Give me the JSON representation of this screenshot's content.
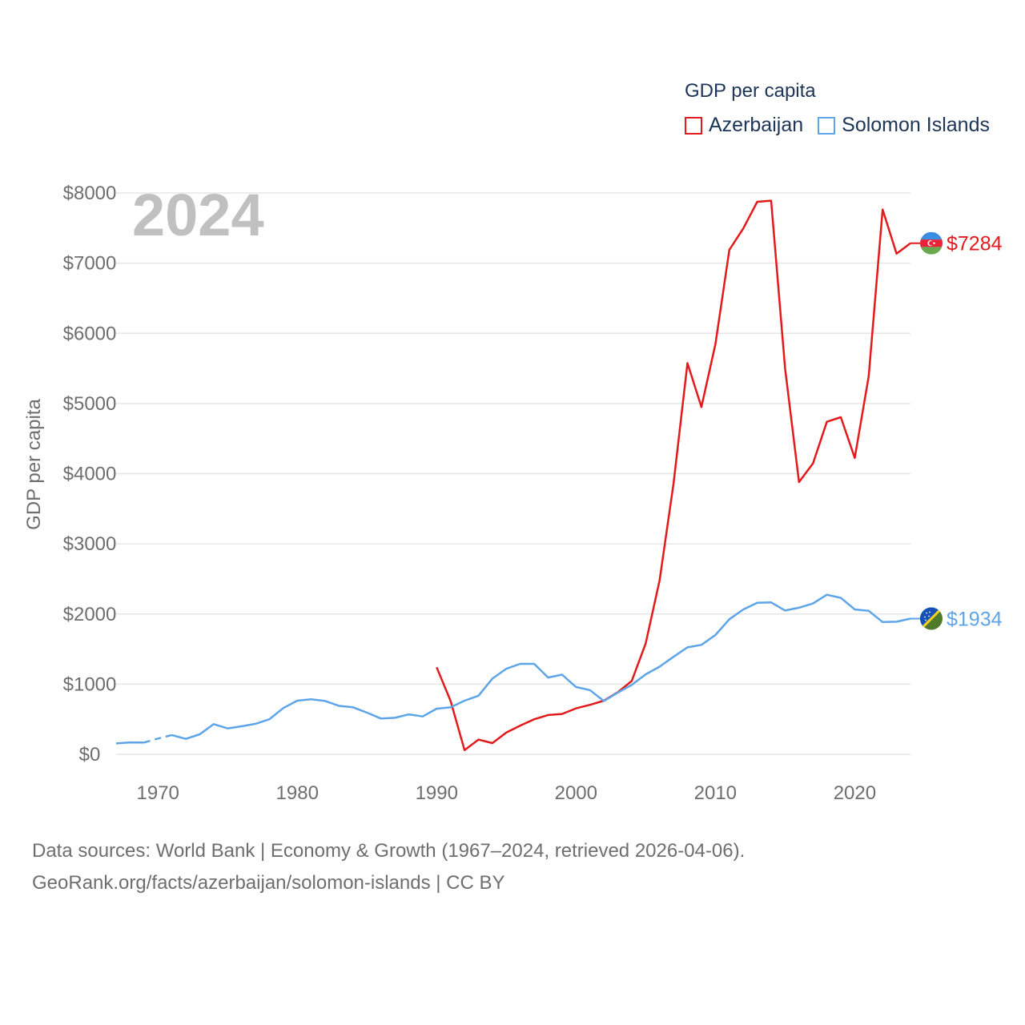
{
  "chart_data": {
    "type": "line",
    "title": "GDP per capita",
    "ylabel": "GDP per capita",
    "xlabel": "",
    "xlim": [
      1967,
      2024
    ],
    "ylim": [
      0,
      8000
    ],
    "y_ticks": [
      0,
      1000,
      2000,
      3000,
      4000,
      5000,
      6000,
      7000,
      8000
    ],
    "y_tick_labels": [
      "$0",
      "$1000",
      "$2000",
      "$3000",
      "$4000",
      "$5000",
      "$6000",
      "$7000",
      "$8000"
    ],
    "x_ticks": [
      1970,
      1980,
      1990,
      2000,
      2010,
      2020
    ],
    "x_tick_labels": [
      "1970",
      "1980",
      "1990",
      "2000",
      "2010",
      "2020"
    ],
    "grid": true,
    "legend_position": "top-right",
    "year_label": "2024",
    "series": [
      {
        "name": "Azerbaijan",
        "color": "#e31a1c",
        "end_label": "$7284",
        "flag_icon": "azerbaijan-flag-icon",
        "points": [
          [
            1990,
            1240
          ],
          [
            1991,
            760
          ],
          [
            1992,
            60
          ],
          [
            1993,
            210
          ],
          [
            1994,
            160
          ],
          [
            1995,
            310
          ],
          [
            1996,
            410
          ],
          [
            1997,
            500
          ],
          [
            1998,
            560
          ],
          [
            1999,
            575
          ],
          [
            2000,
            655
          ],
          [
            2001,
            705
          ],
          [
            2002,
            765
          ],
          [
            2003,
            885
          ],
          [
            2004,
            1045
          ],
          [
            2005,
            1580
          ],
          [
            2006,
            2480
          ],
          [
            2007,
            3860
          ],
          [
            2008,
            5575
          ],
          [
            2009,
            4950
          ],
          [
            2010,
            5845
          ],
          [
            2011,
            7190
          ],
          [
            2012,
            7495
          ],
          [
            2013,
            7875
          ],
          [
            2014,
            7890
          ],
          [
            2015,
            5500
          ],
          [
            2016,
            3880
          ],
          [
            2017,
            4145
          ],
          [
            2018,
            4740
          ],
          [
            2019,
            4805
          ],
          [
            2020,
            4225
          ],
          [
            2021,
            5385
          ],
          [
            2022,
            7765
          ],
          [
            2023,
            7135
          ],
          [
            2024,
            7284
          ]
        ]
      },
      {
        "name": "Solomon Islands",
        "color": "#5da5e8",
        "end_label": "$1934",
        "flag_icon": "solomon-islands-flag-icon",
        "dashed_ranges": [
          [
            1969,
            1971
          ]
        ],
        "points": [
          [
            1967,
            155
          ],
          [
            1968,
            170
          ],
          [
            1969,
            168
          ],
          [
            1970,
            225
          ],
          [
            1971,
            275
          ],
          [
            1972,
            220
          ],
          [
            1973,
            285
          ],
          [
            1974,
            430
          ],
          [
            1975,
            370
          ],
          [
            1976,
            400
          ],
          [
            1977,
            435
          ],
          [
            1978,
            500
          ],
          [
            1979,
            660
          ],
          [
            1980,
            765
          ],
          [
            1981,
            785
          ],
          [
            1982,
            760
          ],
          [
            1983,
            690
          ],
          [
            1984,
            670
          ],
          [
            1985,
            595
          ],
          [
            1986,
            510
          ],
          [
            1987,
            520
          ],
          [
            1988,
            570
          ],
          [
            1989,
            540
          ],
          [
            1990,
            650
          ],
          [
            1991,
            670
          ],
          [
            1992,
            765
          ],
          [
            1993,
            835
          ],
          [
            1994,
            1080
          ],
          [
            1995,
            1220
          ],
          [
            1996,
            1290
          ],
          [
            1997,
            1290
          ],
          [
            1998,
            1095
          ],
          [
            1999,
            1135
          ],
          [
            2000,
            960
          ],
          [
            2001,
            915
          ],
          [
            2002,
            760
          ],
          [
            2003,
            880
          ],
          [
            2004,
            990
          ],
          [
            2005,
            1140
          ],
          [
            2006,
            1250
          ],
          [
            2007,
            1390
          ],
          [
            2008,
            1525
          ],
          [
            2009,
            1560
          ],
          [
            2010,
            1700
          ],
          [
            2011,
            1925
          ],
          [
            2012,
            2065
          ],
          [
            2013,
            2160
          ],
          [
            2014,
            2165
          ],
          [
            2015,
            2050
          ],
          [
            2016,
            2090
          ],
          [
            2017,
            2150
          ],
          [
            2018,
            2275
          ],
          [
            2019,
            2230
          ],
          [
            2020,
            2065
          ],
          [
            2021,
            2045
          ],
          [
            2022,
            1885
          ],
          [
            2023,
            1890
          ],
          [
            2024,
            1934
          ]
        ]
      }
    ]
  },
  "legend": {
    "title": "GDP per capita",
    "items": [
      "Azerbaijan",
      "Solomon Islands"
    ]
  },
  "footer": {
    "line1": "Data sources: World Bank | Economy & Growth (1967–2024, retrieved 2026-04-06).",
    "line2": "GeoRank.org/facts/azerbaijan/solomon-islands | CC BY"
  }
}
